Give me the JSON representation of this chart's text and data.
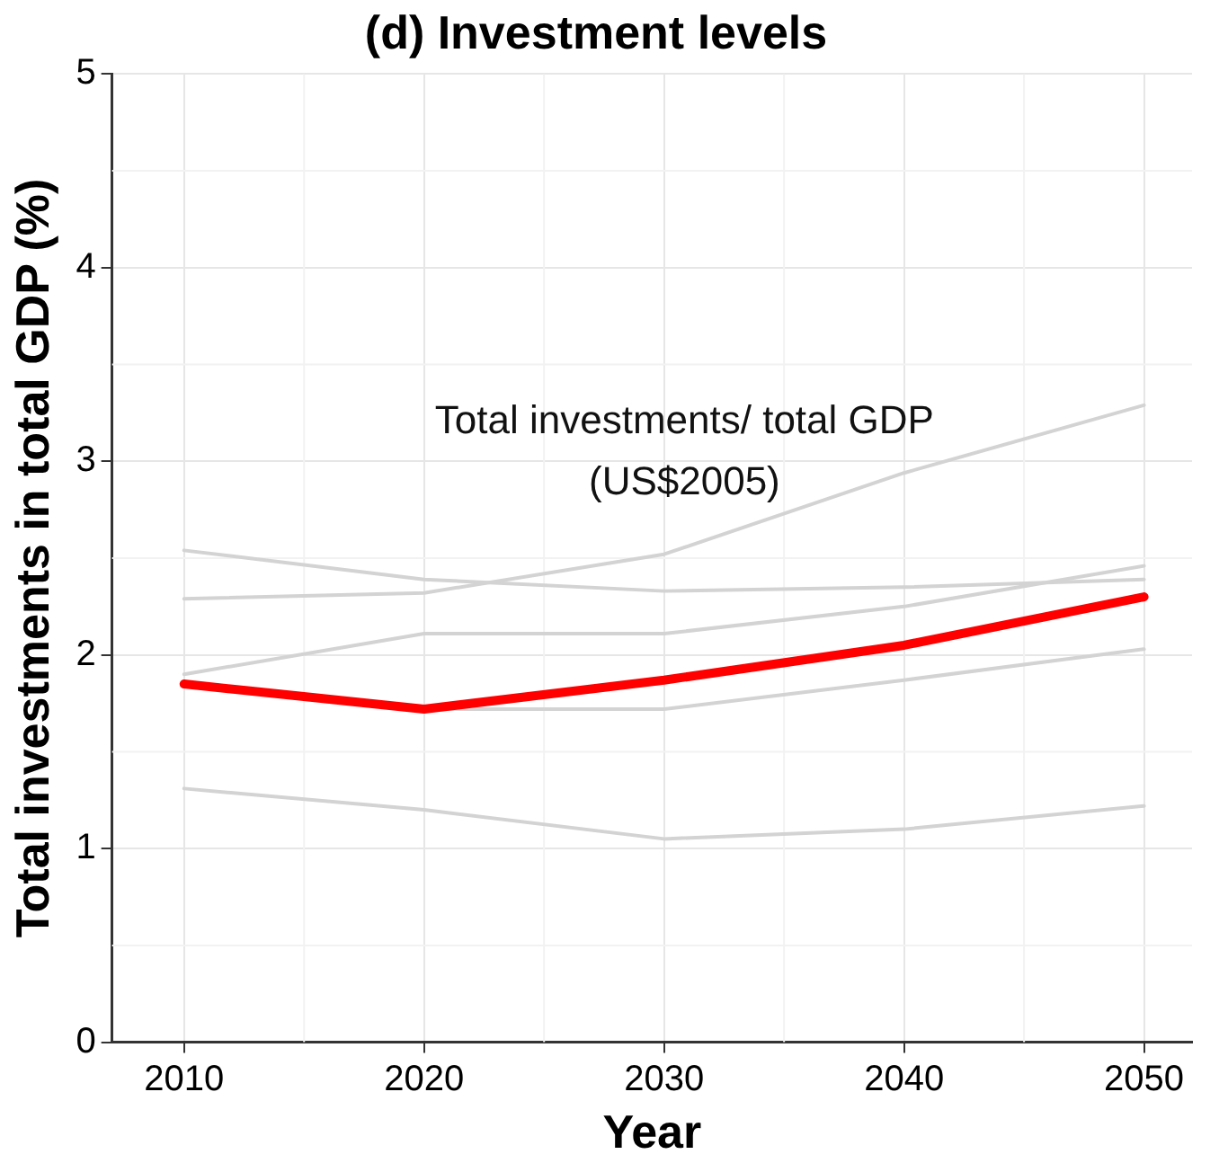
{
  "chart_data": {
    "type": "line",
    "title": "(d) Investment levels",
    "xlabel": "Year",
    "ylabel": "Total investments in total GDP (%)",
    "x": [
      2010,
      2020,
      2030,
      2040,
      2050
    ],
    "series": [
      {
        "color": "#d3d3d3",
        "values": [
          2.54,
          2.39,
          2.33,
          2.35,
          2.39
        ]
      },
      {
        "color": "#d3d3d3",
        "values": [
          2.29,
          2.32,
          2.52,
          2.94,
          3.29
        ]
      },
      {
        "color": "#d3d3d3",
        "values": [
          1.9,
          2.11,
          2.11,
          2.25,
          2.46
        ]
      },
      {
        "color": "#d3d3d3",
        "values": [
          1.85,
          1.72,
          1.72,
          1.87,
          2.03
        ]
      },
      {
        "color": "#d3d3d3",
        "values": [
          1.31,
          1.2,
          1.05,
          1.1,
          1.22
        ]
      },
      {
        "color": "#ff0000",
        "values": [
          1.85,
          1.72,
          1.87,
          2.05,
          2.3
        ]
      }
    ],
    "annotations": [
      "Total investments/ total GDP\n(US$2005)"
    ],
    "xlim": [
      2007,
      2052
    ],
    "ylim": [
      0,
      5
    ],
    "xticks": [
      2010,
      2020,
      2030,
      2040,
      2050
    ],
    "yticks": [
      0,
      1,
      2,
      3,
      4,
      5
    ],
    "grid": true,
    "legend": false,
    "marker": "none",
    "line_style": "solid"
  }
}
